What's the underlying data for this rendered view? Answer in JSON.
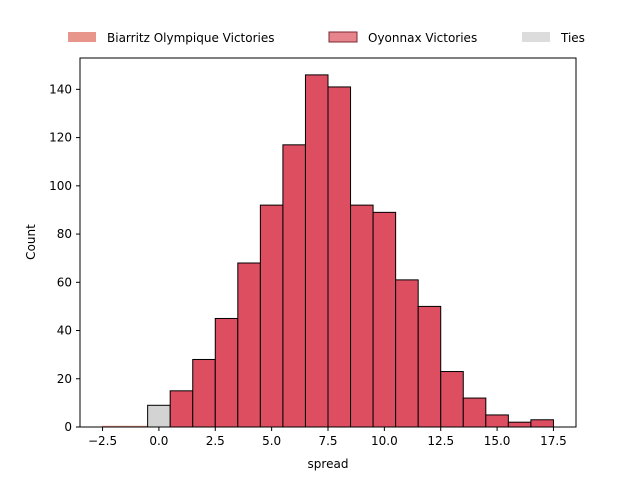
{
  "chart_data": {
    "type": "bar",
    "xlabel": "spread",
    "ylabel": "Count",
    "xlim": [
      -3.5,
      18.5
    ],
    "ylim": [
      0,
      153
    ],
    "bin_width": 1,
    "xticks": [
      -2.5,
      0.0,
      2.5,
      5.0,
      7.5,
      10.0,
      12.5,
      15.0,
      17.5
    ],
    "xtick_labels": [
      "−2.5",
      "0.0",
      "2.5",
      "5.0",
      "7.5",
      "10.0",
      "12.5",
      "15.0",
      "17.5"
    ],
    "yticks": [
      0,
      20,
      40,
      60,
      80,
      100,
      120,
      140
    ],
    "legend": {
      "placement": "top-center (above plot)",
      "entries": [
        {
          "label": "Biarritz Olympique Victories",
          "color": "#e8958c"
        },
        {
          "label": "Oyonnax Victories",
          "color": "#e8848c"
        },
        {
          "label": "Ties",
          "color": "#dcdcdc"
        }
      ]
    },
    "series": [
      {
        "name": "Biarritz Olympique Victories",
        "color": "#e9907f",
        "bins": [
          {
            "x0": -2.5,
            "x1": -1.5,
            "count": 0
          },
          {
            "x0": -1.5,
            "x1": -0.5,
            "count": 0
          }
        ]
      },
      {
        "name": "Ties",
        "color": "#d3d3d3",
        "bins": [
          {
            "x0": -0.5,
            "x1": 0.5,
            "count": 9
          }
        ]
      },
      {
        "name": "Oyonnax Victories",
        "color": "#dc4e60",
        "bins": [
          {
            "x0": 0.5,
            "x1": 1.5,
            "count": 15
          },
          {
            "x0": 1.5,
            "x1": 2.5,
            "count": 28
          },
          {
            "x0": 2.5,
            "x1": 3.5,
            "count": 45
          },
          {
            "x0": 3.5,
            "x1": 4.5,
            "count": 68
          },
          {
            "x0": 4.5,
            "x1": 5.5,
            "count": 92
          },
          {
            "x0": 5.5,
            "x1": 6.5,
            "count": 117
          },
          {
            "x0": 6.5,
            "x1": 7.5,
            "count": 146
          },
          {
            "x0": 7.5,
            "x1": 8.5,
            "count": 141
          },
          {
            "x0": 8.5,
            "x1": 9.5,
            "count": 92
          },
          {
            "x0": 9.5,
            "x1": 10.5,
            "count": 89
          },
          {
            "x0": 10.5,
            "x1": 11.5,
            "count": 61
          },
          {
            "x0": 11.5,
            "x1": 12.5,
            "count": 50
          },
          {
            "x0": 12.5,
            "x1": 13.5,
            "count": 23
          },
          {
            "x0": 13.5,
            "x1": 14.5,
            "count": 12
          },
          {
            "x0": 14.5,
            "x1": 15.5,
            "count": 5
          },
          {
            "x0": 15.5,
            "x1": 16.5,
            "count": 2
          },
          {
            "x0": 16.5,
            "x1": 17.5,
            "count": 3
          }
        ]
      }
    ]
  }
}
